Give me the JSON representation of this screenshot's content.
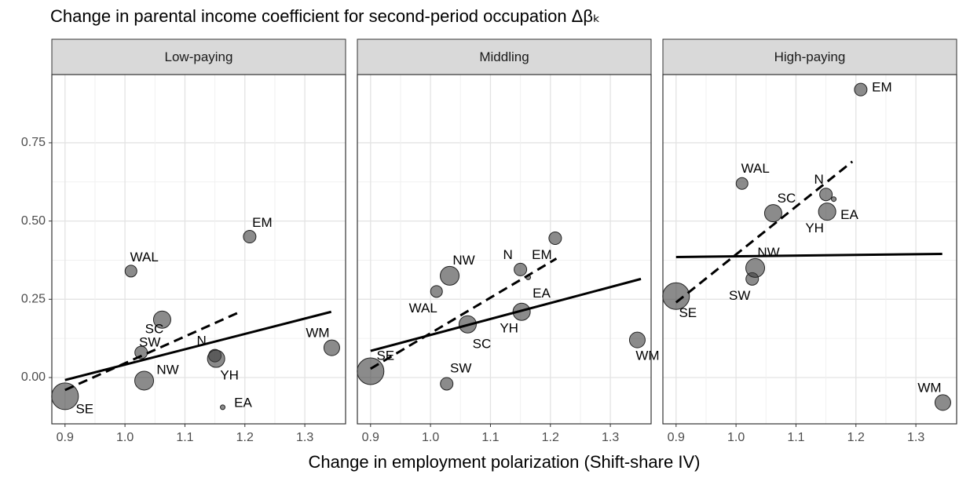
{
  "title": "Change in parental income coefficient for second-period occupation Δβₖ",
  "x_label": "Change in employment polarization (Shift-share IV)",
  "chart_data": [
    {
      "type": "scatter",
      "title": "Low-paying",
      "labels": [
        "SE",
        "WAL",
        "EM",
        "SC",
        "SW",
        "NW",
        "N",
        "YH",
        "EA",
        "WM"
      ],
      "x": [
        0.9,
        1.01,
        1.208,
        1.062,
        1.027,
        1.032,
        1.15,
        1.152,
        1.163,
        1.345
      ],
      "values": [
        -0.06,
        0.34,
        0.45,
        0.185,
        0.08,
        -0.01,
        0.07,
        0.06,
        -0.095,
        0.095
      ],
      "sizes": [
        17,
        7.5,
        8,
        11,
        8,
        12,
        8,
        11,
        3,
        10
      ],
      "color": "#3d3d3d",
      "lines": [
        {
          "style": "solid",
          "x": [
            0.9,
            1.344
          ],
          "values": [
            -0.008,
            0.21
          ]
        },
        {
          "style": "dashed",
          "x": [
            0.9,
            1.192
          ],
          "values": [
            -0.04,
            0.21
          ]
        }
      ],
      "xlim": [
        0.878,
        1.368
      ],
      "ylim": [
        -0.148,
        0.968
      ],
      "xticks": [
        0.9,
        {
          "value": 1.0,
          "label": "1.0"
        },
        1.1,
        1.2,
        1.3
      ],
      "yticks": [
        {
          "value": 0,
          "label": "0.00"
        },
        0.25,
        {
          "value": 0.5,
          "label": "0.50"
        },
        0.75
      ],
      "grid": true
    },
    {
      "type": "scatter",
      "title": "Middling",
      "labels": [
        "SE",
        "WAL",
        "EM",
        "SC",
        "SW",
        "NW",
        "N",
        "YH",
        "EA",
        "WM"
      ],
      "x": [
        0.9,
        1.01,
        1.208,
        1.062,
        1.027,
        1.032,
        1.15,
        1.152,
        1.163,
        1.345
      ],
      "values": [
        0.02,
        0.275,
        0.445,
        0.17,
        -0.02,
        0.325,
        0.345,
        0.21,
        0.32,
        0.12
      ],
      "sizes": [
        17,
        7.5,
        8,
        11,
        8,
        12,
        8,
        11,
        3,
        10
      ],
      "color": "#3d3d3d",
      "lines": [
        {
          "style": "solid",
          "x": [
            0.9,
            1.351
          ],
          "values": [
            0.085,
            0.315
          ]
        },
        {
          "style": "dashed",
          "x": [
            0.9,
            1.21
          ],
          "values": [
            0.028,
            0.38
          ]
        }
      ],
      "xlim": [
        0.878,
        1.368
      ],
      "ylim": [
        -0.148,
        0.968
      ],
      "xticks": [
        0.9,
        {
          "value": 1.0,
          "label": "1.0"
        },
        1.1,
        1.2,
        1.3
      ],
      "grid": true
    },
    {
      "type": "scatter",
      "title": "High-paying",
      "labels": [
        "SE",
        "WAL",
        "EM",
        "SC",
        "SW",
        "NW",
        "N",
        "YH",
        "EA",
        "WM"
      ],
      "x": [
        0.9,
        1.01,
        1.208,
        1.062,
        1.027,
        1.032,
        1.15,
        1.152,
        1.163,
        1.345
      ],
      "values": [
        0.26,
        0.62,
        0.92,
        0.525,
        0.315,
        0.35,
        0.585,
        0.53,
        0.57,
        -0.08
      ],
      "sizes": [
        17,
        7.5,
        8,
        11,
        8,
        12,
        8,
        11,
        3,
        10
      ],
      "color": "#3d3d3d",
      "lines": [
        {
          "style": "solid",
          "x": [
            0.9,
            1.344
          ],
          "values": [
            0.385,
            0.395
          ]
        },
        {
          "style": "dashed",
          "x": [
            0.9,
            1.194
          ],
          "values": [
            0.24,
            0.69
          ]
        }
      ],
      "xlim": [
        0.878,
        1.368
      ],
      "ylim": [
        -0.148,
        0.968
      ],
      "xticks": [
        0.9,
        {
          "value": 1.0,
          "label": "1.0"
        },
        1.1,
        1.2,
        1.3
      ],
      "grid": true
    }
  ]
}
